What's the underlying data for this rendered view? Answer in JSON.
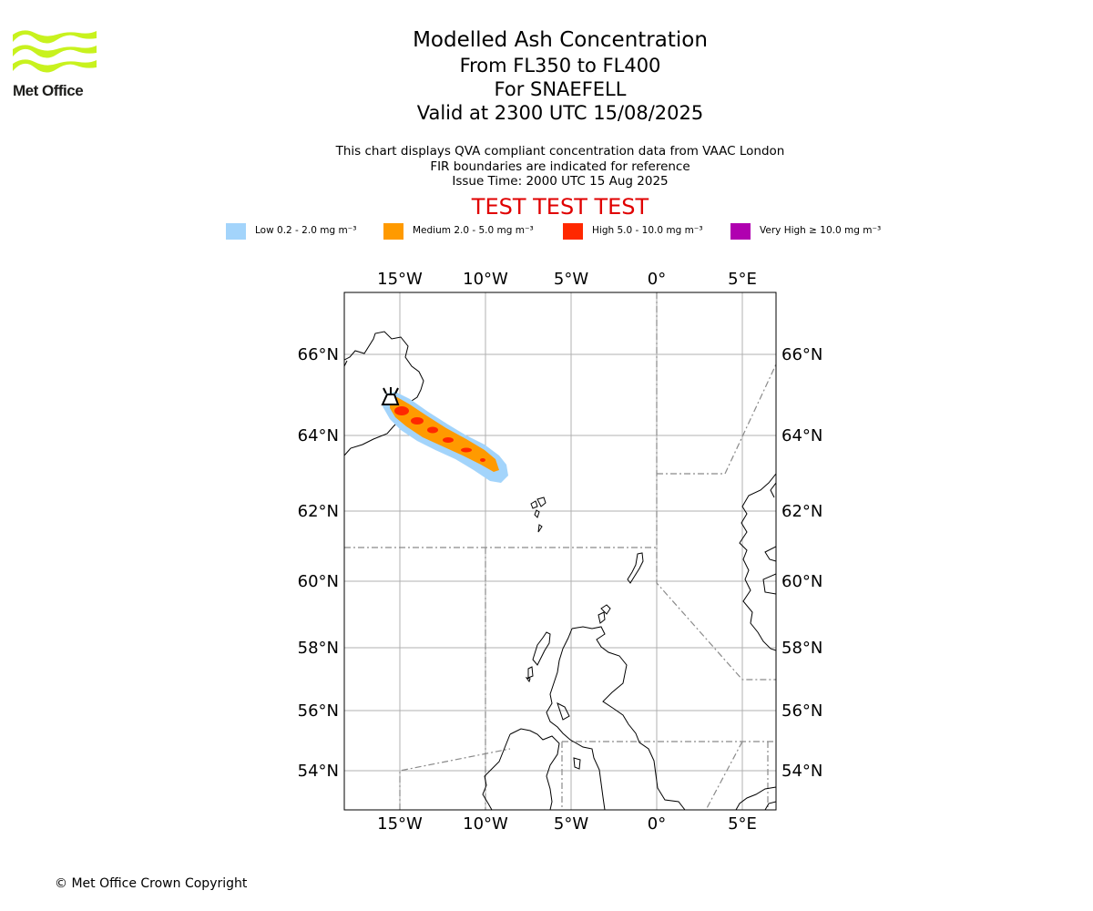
{
  "logo": {
    "text": "Met Office",
    "color": "#c8f21e"
  },
  "title": {
    "line1": "Modelled Ash Concentration",
    "line2": "From FL350 to FL400",
    "line3": "For SNAEFELL",
    "line4": "Valid at 2300 UTC 15/08/2025"
  },
  "subtitle": {
    "line1": "This chart displays QVA compliant concentration data from VAAC London",
    "line2": "FIR boundaries are indicated for reference",
    "line3": "Issue Time: 2000 UTC 15 Aug 2025"
  },
  "test_banner": "TEST TEST TEST",
  "legend": [
    {
      "label": "Low 0.2 - 2.0 mg m⁻³",
      "color": "#a3d4fb"
    },
    {
      "label": "Medium 2.0 - 5.0 mg m⁻³",
      "color": "#ff9a00"
    },
    {
      "label": "High 5.0 - 10.0 mg m⁻³",
      "color": "#ff2800"
    },
    {
      "label": "Very High ≥ 10.0 mg m⁻³",
      "color": "#b000b0"
    }
  ],
  "map": {
    "lon_labels": [
      "15°W",
      "10°W",
      "5°W",
      "0°",
      "5°E"
    ],
    "lat_labels": [
      "66°N",
      "64°N",
      "62°N",
      "60°N",
      "58°N",
      "56°N",
      "54°N"
    ],
    "volcano_name": "SNAEFELL"
  },
  "copyright": "© Met Office Crown Copyright"
}
